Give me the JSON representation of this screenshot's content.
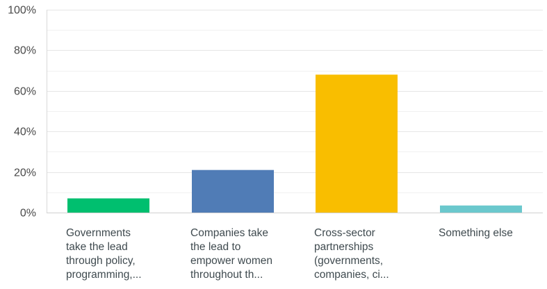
{
  "chart_data": {
    "type": "bar",
    "categories": [
      [
        "Governments",
        "take the lead",
        "through policy,",
        "programming,..."
      ],
      [
        "Companies take",
        "the lead to",
        "empower women",
        "throughout th..."
      ],
      [
        "Cross-sector",
        "partnerships",
        "(governments,",
        "companies, ci..."
      ],
      [
        "Something else"
      ]
    ],
    "values": [
      7,
      21,
      68,
      3.5
    ],
    "colors": [
      "#00bf6f",
      "#507cb6",
      "#f9be00",
      "#6bc8cd"
    ],
    "yticks": [
      {
        "value": 0,
        "label": "0%"
      },
      {
        "value": 20,
        "label": "20%"
      },
      {
        "value": 40,
        "label": "40%"
      },
      {
        "value": 60,
        "label": "60%"
      },
      {
        "value": 80,
        "label": "80%"
      },
      {
        "value": 100,
        "label": "100%"
      }
    ],
    "ylim": [
      0,
      100
    ],
    "unit": "percent",
    "grid": true,
    "minor_grid": true,
    "title": "",
    "xlabel": "",
    "ylabel": ""
  }
}
